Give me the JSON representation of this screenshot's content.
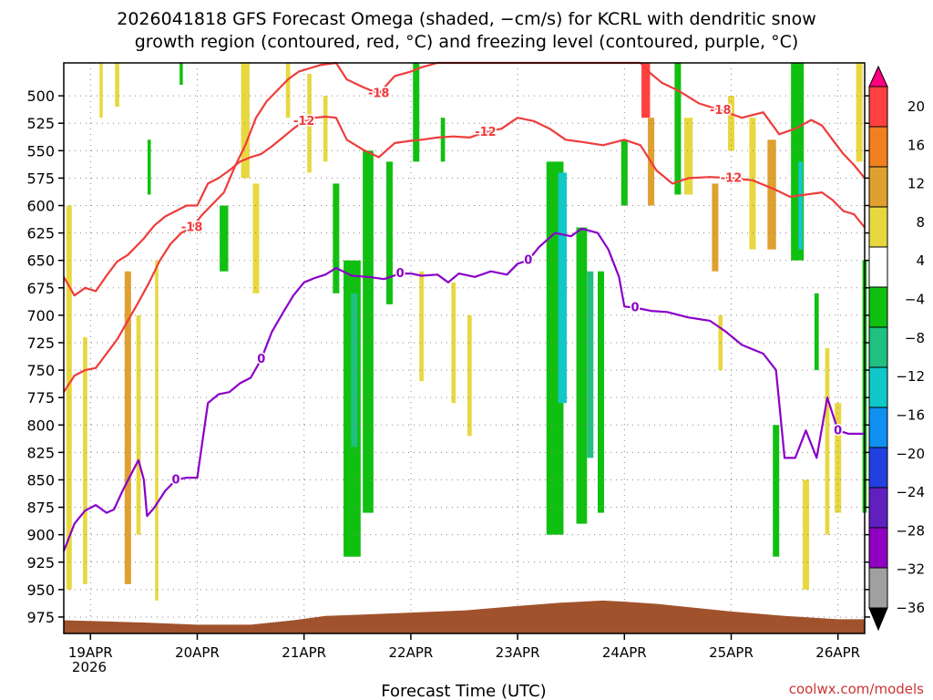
{
  "title_line1": "2026041818 GFS Forecast Omega (shaded, −cm/s) for KCRL with dendritic snow",
  "title_line2": "growth region (contoured, red, °C) and freezing level (contoured, purple, °C)",
  "x_axis_label": "Forecast Time (UTC)",
  "credit": "coolwx.com/models",
  "colors": {
    "temp_contour": "#ee3c3c",
    "freezing_contour": "#8a00c8",
    "terrain": "#a0522d",
    "grid": "#888888"
  },
  "chart_data": {
    "type": "heatmap",
    "y_axis": {
      "scale": "pressure (inverted)",
      "range": [
        990,
        470
      ],
      "ticks": [
        500,
        525,
        550,
        575,
        600,
        625,
        650,
        675,
        700,
        725,
        750,
        775,
        800,
        825,
        850,
        875,
        900,
        925,
        950,
        975
      ]
    },
    "x_axis": {
      "range": [
        "2026-04-18 18Z",
        "2026-04-26 06Z"
      ],
      "ticks": [
        {
          "day": 19,
          "label": "19APR"
        },
        {
          "day": 20,
          "label": "20APR"
        },
        {
          "day": 21,
          "label": "21APR"
        },
        {
          "day": 22,
          "label": "22APR"
        },
        {
          "day": 23,
          "label": "23APR"
        },
        {
          "day": 24,
          "label": "24APR"
        },
        {
          "day": 25,
          "label": "25APR"
        },
        {
          "day": 26,
          "label": "26APR"
        }
      ],
      "year_label": "2026"
    },
    "colorbar": {
      "levels": [
        "20",
        "16",
        "12",
        "8",
        "4",
        "−4",
        "−8",
        "−12",
        "−16",
        "−20",
        "−24",
        "−28",
        "−32",
        "−36"
      ],
      "colors": [
        "#ff0080",
        "#ff4040",
        "#f08020",
        "#e0a030",
        "#e8d840",
        "#ffffff",
        "#10c010",
        "#20c080",
        "#10c8c8",
        "#1090f0",
        "#2040e0",
        "#6020c0",
        "#9000c0",
        "#a0a0a0",
        "#000000"
      ]
    },
    "freezing_level_0C": {
      "label": "0",
      "points": [
        [
          18.75,
          915
        ],
        [
          18.85,
          890
        ],
        [
          18.95,
          878
        ],
        [
          19.05,
          873
        ],
        [
          19.15,
          880
        ],
        [
          19.22,
          877
        ],
        [
          19.3,
          860
        ],
        [
          19.38,
          845
        ],
        [
          19.45,
          832
        ],
        [
          19.5,
          850
        ],
        [
          19.53,
          883
        ],
        [
          19.6,
          875
        ],
        [
          19.7,
          860
        ],
        [
          19.8,
          850
        ],
        [
          19.9,
          848
        ],
        [
          20.0,
          848
        ],
        [
          20.1,
          780
        ],
        [
          20.2,
          772
        ],
        [
          20.3,
          770
        ],
        [
          20.4,
          762
        ],
        [
          20.5,
          757
        ],
        [
          20.6,
          740
        ],
        [
          20.7,
          715
        ],
        [
          20.8,
          698
        ],
        [
          20.9,
          682
        ],
        [
          21.0,
          670
        ],
        [
          21.1,
          666
        ],
        [
          21.2,
          663
        ],
        [
          21.3,
          657
        ],
        [
          21.45,
          664
        ],
        [
          21.6,
          665
        ],
        [
          21.75,
          667
        ],
        [
          21.9,
          662
        ],
        [
          22.0,
          662
        ],
        [
          22.1,
          664
        ],
        [
          22.25,
          663
        ],
        [
          22.35,
          670
        ],
        [
          22.45,
          662
        ],
        [
          22.6,
          665
        ],
        [
          22.75,
          660
        ],
        [
          22.9,
          663
        ],
        [
          23.0,
          653
        ],
        [
          23.1,
          650
        ],
        [
          23.2,
          638
        ],
        [
          23.35,
          625
        ],
        [
          23.5,
          628
        ],
        [
          23.6,
          621
        ],
        [
          23.75,
          625
        ],
        [
          23.85,
          640
        ],
        [
          23.95,
          665
        ],
        [
          24.0,
          692
        ],
        [
          24.1,
          693
        ],
        [
          24.25,
          696
        ],
        [
          24.4,
          697
        ],
        [
          24.6,
          702
        ],
        [
          24.8,
          705
        ],
        [
          24.95,
          715
        ],
        [
          25.1,
          727
        ],
        [
          25.3,
          735
        ],
        [
          25.42,
          750
        ],
        [
          25.5,
          830
        ],
        [
          25.6,
          830
        ],
        [
          25.7,
          805
        ],
        [
          25.8,
          830
        ],
        [
          25.9,
          775
        ],
        [
          26.0,
          805
        ],
        [
          26.1,
          808
        ],
        [
          26.25,
          808
        ]
      ]
    },
    "temp_minus12": {
      "label": "-12",
      "points": [
        [
          18.75,
          665
        ],
        [
          18.85,
          682
        ],
        [
          18.95,
          675
        ],
        [
          19.05,
          678
        ],
        [
          19.15,
          664
        ],
        [
          19.25,
          651
        ],
        [
          19.35,
          645
        ],
        [
          19.5,
          630
        ],
        [
          19.6,
          618
        ],
        [
          19.7,
          610
        ],
        [
          19.8,
          605
        ],
        [
          19.9,
          600
        ],
        [
          20.0,
          600
        ],
        [
          20.1,
          580
        ],
        [
          20.2,
          575
        ],
        [
          20.3,
          568
        ],
        [
          20.4,
          560
        ],
        [
          20.5,
          556
        ],
        [
          20.6,
          553
        ],
        [
          20.7,
          546
        ],
        [
          20.8,
          538
        ],
        [
          20.9,
          530
        ],
        [
          21.0,
          523
        ],
        [
          21.1,
          520
        ],
        [
          21.2,
          519
        ],
        [
          21.3,
          520
        ],
        [
          21.4,
          540
        ],
        [
          21.55,
          549
        ],
        [
          21.7,
          556
        ],
        [
          21.85,
          543
        ],
        [
          22.0,
          541
        ],
        [
          22.1,
          540
        ],
        [
          22.25,
          538
        ],
        [
          22.4,
          537
        ],
        [
          22.55,
          538
        ],
        [
          22.7,
          533
        ],
        [
          22.85,
          530
        ],
        [
          23.0,
          520
        ],
        [
          23.15,
          523
        ],
        [
          23.3,
          530
        ],
        [
          23.45,
          540
        ],
        [
          23.6,
          542
        ],
        [
          23.8,
          545
        ],
        [
          24.0,
          540
        ],
        [
          24.15,
          545
        ],
        [
          24.3,
          568
        ],
        [
          24.45,
          580
        ],
        [
          24.6,
          575
        ],
        [
          24.8,
          574
        ],
        [
          25.0,
          575
        ],
        [
          25.2,
          577
        ],
        [
          25.4,
          585
        ],
        [
          25.55,
          592
        ],
        [
          25.7,
          590
        ],
        [
          25.85,
          588
        ],
        [
          25.95,
          595
        ],
        [
          26.05,
          605
        ],
        [
          26.15,
          608
        ],
        [
          26.25,
          620
        ]
      ]
    },
    "temp_minus18": {
      "label": "-18",
      "points": [
        [
          18.75,
          770
        ],
        [
          18.85,
          755
        ],
        [
          18.95,
          750
        ],
        [
          19.05,
          748
        ],
        [
          19.15,
          735
        ],
        [
          19.25,
          722
        ],
        [
          19.35,
          705
        ],
        [
          19.45,
          688
        ],
        [
          19.55,
          670
        ],
        [
          19.65,
          650
        ],
        [
          19.75,
          635
        ],
        [
          19.85,
          625
        ],
        [
          19.95,
          620
        ],
        [
          20.05,
          608
        ],
        [
          20.15,
          598
        ],
        [
          20.25,
          588
        ],
        [
          20.35,
          565
        ],
        [
          20.45,
          545
        ],
        [
          20.55,
          520
        ],
        [
          20.65,
          505
        ],
        [
          20.75,
          495
        ],
        [
          20.85,
          485
        ],
        [
          20.95,
          478
        ],
        [
          21.05,
          475
        ],
        [
          21.15,
          472
        ],
        [
          21.3,
          470
        ],
        [
          21.4,
          485
        ],
        [
          21.55,
          492
        ],
        [
          21.7,
          498
        ],
        [
          21.85,
          482
        ],
        [
          22.0,
          478
        ],
        [
          22.1,
          474
        ],
        [
          22.25,
          470
        ],
        [
          24.15,
          470
        ],
        [
          24.25,
          480
        ],
        [
          24.35,
          488
        ],
        [
          24.5,
          495
        ],
        [
          24.7,
          507
        ],
        [
          24.9,
          513
        ],
        [
          25.1,
          520
        ],
        [
          25.3,
          515
        ],
        [
          25.45,
          535
        ],
        [
          25.6,
          530
        ],
        [
          25.75,
          522
        ],
        [
          25.85,
          527
        ],
        [
          25.95,
          540
        ],
        [
          26.05,
          553
        ],
        [
          26.15,
          563
        ],
        [
          26.25,
          575
        ]
      ]
    },
    "omega_bands": [
      {
        "day": 18.8,
        "half_width": 0.025,
        "top": 600,
        "bottom": 950,
        "color": "#e8d840"
      },
      {
        "day": 18.95,
        "half_width": 0.02,
        "top": 720,
        "bottom": 945,
        "color": "#e8d840"
      },
      {
        "day": 19.1,
        "half_width": 0.015,
        "top": 470,
        "bottom": 520,
        "color": "#e8d840"
      },
      {
        "day": 19.25,
        "half_width": 0.02,
        "top": 470,
        "bottom": 510,
        "color": "#e8d840"
      },
      {
        "day": 19.35,
        "half_width": 0.03,
        "top": 660,
        "bottom": 945,
        "color": "#e0a030"
      },
      {
        "day": 19.45,
        "half_width": 0.02,
        "top": 700,
        "bottom": 900,
        "color": "#e8d840"
      },
      {
        "day": 19.55,
        "half_width": 0.015,
        "top": 540,
        "bottom": 590,
        "color": "#10c010"
      },
      {
        "day": 19.62,
        "half_width": 0.015,
        "top": 650,
        "bottom": 960,
        "color": "#e8d840"
      },
      {
        "day": 19.85,
        "half_width": 0.015,
        "top": 470,
        "bottom": 490,
        "color": "#10c010"
      },
      {
        "day": 20.25,
        "half_width": 0.04,
        "top": 600,
        "bottom": 660,
        "color": "#10c010"
      },
      {
        "day": 20.45,
        "half_width": 0.04,
        "top": 470,
        "bottom": 575,
        "color": "#e8d840"
      },
      {
        "day": 20.55,
        "half_width": 0.03,
        "top": 580,
        "bottom": 680,
        "color": "#e8d840"
      },
      {
        "day": 20.85,
        "half_width": 0.02,
        "top": 470,
        "bottom": 520,
        "color": "#e8d840"
      },
      {
        "day": 21.05,
        "half_width": 0.02,
        "top": 480,
        "bottom": 570,
        "color": "#e8d840"
      },
      {
        "day": 21.2,
        "half_width": 0.02,
        "top": 500,
        "bottom": 560,
        "color": "#e8d840"
      },
      {
        "day": 21.3,
        "half_width": 0.03,
        "top": 580,
        "bottom": 680,
        "color": "#10c010"
      },
      {
        "day": 21.45,
        "half_width": 0.08,
        "top": 650,
        "bottom": 920,
        "color": "#10c010"
      },
      {
        "day": 21.47,
        "half_width": 0.03,
        "top": 680,
        "bottom": 820,
        "color": "#20c080"
      },
      {
        "day": 21.6,
        "half_width": 0.05,
        "top": 550,
        "bottom": 880,
        "color": "#10c010"
      },
      {
        "day": 21.8,
        "half_width": 0.03,
        "top": 560,
        "bottom": 690,
        "color": "#10c010"
      },
      {
        "day": 22.05,
        "half_width": 0.03,
        "top": 470,
        "bottom": 560,
        "color": "#10c010"
      },
      {
        "day": 22.1,
        "half_width": 0.02,
        "top": 660,
        "bottom": 760,
        "color": "#e8d840"
      },
      {
        "day": 22.3,
        "half_width": 0.02,
        "top": 520,
        "bottom": 560,
        "color": "#10c010"
      },
      {
        "day": 22.4,
        "half_width": 0.02,
        "top": 670,
        "bottom": 780,
        "color": "#e8d840"
      },
      {
        "day": 22.55,
        "half_width": 0.02,
        "top": 700,
        "bottom": 810,
        "color": "#e8d840"
      },
      {
        "day": 23.35,
        "half_width": 0.08,
        "top": 560,
        "bottom": 900,
        "color": "#10c010"
      },
      {
        "day": 23.42,
        "half_width": 0.04,
        "top": 570,
        "bottom": 780,
        "color": "#10c8c8"
      },
      {
        "day": 23.6,
        "half_width": 0.05,
        "top": 620,
        "bottom": 890,
        "color": "#10c010"
      },
      {
        "day": 23.68,
        "half_width": 0.03,
        "top": 660,
        "bottom": 830,
        "color": "#20c080"
      },
      {
        "day": 23.78,
        "half_width": 0.03,
        "top": 660,
        "bottom": 880,
        "color": "#10c010"
      },
      {
        "day": 24.0,
        "half_width": 0.03,
        "top": 540,
        "bottom": 600,
        "color": "#10c010"
      },
      {
        "day": 24.2,
        "half_width": 0.04,
        "top": 470,
        "bottom": 520,
        "color": "#ff4040"
      },
      {
        "day": 24.25,
        "half_width": 0.03,
        "top": 520,
        "bottom": 600,
        "color": "#e0a030"
      },
      {
        "day": 24.5,
        "half_width": 0.03,
        "top": 470,
        "bottom": 590,
        "color": "#10c010"
      },
      {
        "day": 24.6,
        "half_width": 0.04,
        "top": 520,
        "bottom": 590,
        "color": "#e8d840"
      },
      {
        "day": 24.85,
        "half_width": 0.03,
        "top": 580,
        "bottom": 660,
        "color": "#e0a030"
      },
      {
        "day": 24.9,
        "half_width": 0.02,
        "top": 700,
        "bottom": 750,
        "color": "#e8d840"
      },
      {
        "day": 25.0,
        "half_width": 0.03,
        "top": 500,
        "bottom": 550,
        "color": "#e8d840"
      },
      {
        "day": 25.2,
        "half_width": 0.03,
        "top": 520,
        "bottom": 640,
        "color": "#e8d840"
      },
      {
        "day": 25.38,
        "half_width": 0.04,
        "top": 540,
        "bottom": 640,
        "color": "#e0a030"
      },
      {
        "day": 25.42,
        "half_width": 0.03,
        "top": 800,
        "bottom": 920,
        "color": "#10c010"
      },
      {
        "day": 25.62,
        "half_width": 0.06,
        "top": 470,
        "bottom": 650,
        "color": "#10c010"
      },
      {
        "day": 25.65,
        "half_width": 0.02,
        "top": 560,
        "bottom": 640,
        "color": "#10c8c8"
      },
      {
        "day": 25.7,
        "half_width": 0.03,
        "top": 850,
        "bottom": 950,
        "color": "#e8d840"
      },
      {
        "day": 25.8,
        "half_width": 0.02,
        "top": 680,
        "bottom": 750,
        "color": "#10c010"
      },
      {
        "day": 25.9,
        "half_width": 0.02,
        "top": 730,
        "bottom": 900,
        "color": "#e8d840"
      },
      {
        "day": 26.0,
        "half_width": 0.03,
        "top": 780,
        "bottom": 880,
        "color": "#e8d840"
      },
      {
        "day": 26.2,
        "half_width": 0.03,
        "top": 470,
        "bottom": 560,
        "color": "#e8d840"
      },
      {
        "day": 26.25,
        "half_width": 0.02,
        "top": 650,
        "bottom": 880,
        "color": "#10c010"
      }
    ],
    "terrain": [
      [
        18.75,
        978
      ],
      [
        19.5,
        980
      ],
      [
        20.0,
        982
      ],
      [
        20.5,
        982
      ],
      [
        20.9,
        978
      ],
      [
        21.2,
        974
      ],
      [
        21.5,
        973
      ],
      [
        22.0,
        971
      ],
      [
        22.5,
        969
      ],
      [
        23.0,
        965
      ],
      [
        23.4,
        962
      ],
      [
        23.8,
        960
      ],
      [
        24.0,
        961
      ],
      [
        24.3,
        963
      ],
      [
        24.6,
        966
      ],
      [
        25.0,
        970
      ],
      [
        25.5,
        974
      ],
      [
        26.0,
        977
      ],
      [
        26.25,
        977
      ]
    ]
  }
}
